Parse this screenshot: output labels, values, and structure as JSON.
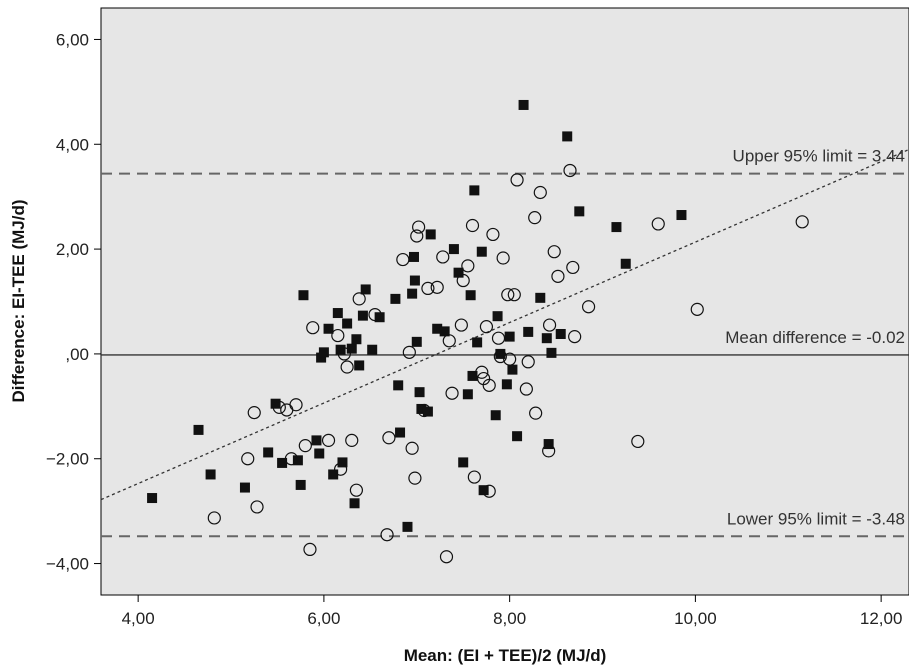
{
  "chart_data": {
    "type": "scatter",
    "title": "",
    "xlabel": "Mean: (EI + TEE)/2 (MJ/d)",
    "ylabel": "Difference: EI-TEE (MJ/d)",
    "xlim": [
      3.6,
      12.3
    ],
    "ylim": [
      -4.6,
      6.6
    ],
    "x_ticks": [
      4,
      6,
      8,
      10,
      12
    ],
    "x_tick_labels": [
      "4,00",
      "6,00",
      "8,00",
      "10,00",
      "12,00"
    ],
    "y_ticks": [
      -4,
      -2,
      0,
      2,
      4,
      6
    ],
    "y_tick_labels": [
      "−4,00",
      "−2,00",
      ",00",
      "2,00",
      "4,00",
      "6,00"
    ],
    "colors": {
      "background": "#e6e6e6",
      "marker": "#111111",
      "line": "#333333",
      "dashed": "#666666"
    },
    "reference_lines": [
      {
        "y": 3.44,
        "style": "dashed",
        "label": "Upper 95% limit = 3.44"
      },
      {
        "y": -0.02,
        "style": "solid",
        "label": "Mean difference = -0.02"
      },
      {
        "y": -3.48,
        "style": "dashed",
        "label": "Lower 95% limit = -3.48"
      }
    ],
    "regression_line": {
      "style": "dotted",
      "from": [
        3.6,
        -2.78
      ],
      "to": [
        12.3,
        3.9
      ]
    },
    "series": [
      {
        "marker": "square-filled",
        "points": [
          [
            4.15,
            -2.75
          ],
          [
            4.65,
            -1.45
          ],
          [
            4.78,
            -2.3
          ],
          [
            5.15,
            -2.55
          ],
          [
            5.4,
            -1.88
          ],
          [
            5.48,
            -0.95
          ],
          [
            5.55,
            -2.08
          ],
          [
            5.72,
            -2.03
          ],
          [
            5.75,
            -2.5
          ],
          [
            5.78,
            1.12
          ],
          [
            5.92,
            -1.65
          ],
          [
            5.95,
            -1.9
          ],
          [
            5.97,
            -0.07
          ],
          [
            6.0,
            0.03
          ],
          [
            6.05,
            0.48
          ],
          [
            6.1,
            -2.3
          ],
          [
            6.15,
            0.78
          ],
          [
            6.18,
            0.08
          ],
          [
            6.2,
            -2.07
          ],
          [
            6.25,
            0.58
          ],
          [
            6.3,
            0.1
          ],
          [
            6.33,
            -2.85
          ],
          [
            6.35,
            0.28
          ],
          [
            6.38,
            -0.22
          ],
          [
            6.42,
            0.73
          ],
          [
            6.45,
            1.23
          ],
          [
            6.52,
            0.08
          ],
          [
            6.6,
            0.7
          ],
          [
            6.77,
            1.05
          ],
          [
            6.8,
            -0.6
          ],
          [
            6.82,
            -1.5
          ],
          [
            6.9,
            -3.3
          ],
          [
            6.95,
            1.15
          ],
          [
            6.97,
            1.85
          ],
          [
            6.98,
            1.4
          ],
          [
            7.0,
            0.23
          ],
          [
            7.03,
            -0.73
          ],
          [
            7.05,
            -1.05
          ],
          [
            7.12,
            -1.1
          ],
          [
            7.15,
            2.28
          ],
          [
            7.22,
            0.48
          ],
          [
            7.3,
            0.43
          ],
          [
            7.4,
            2.0
          ],
          [
            7.45,
            1.55
          ],
          [
            7.5,
            -2.07
          ],
          [
            7.55,
            -0.77
          ],
          [
            7.58,
            1.12
          ],
          [
            7.6,
            -0.42
          ],
          [
            7.62,
            3.12
          ],
          [
            7.65,
            0.22
          ],
          [
            7.7,
            1.95
          ],
          [
            7.72,
            -2.6
          ],
          [
            7.85,
            -1.17
          ],
          [
            7.87,
            0.72
          ],
          [
            7.9,
            0.0
          ],
          [
            7.97,
            -0.58
          ],
          [
            8.0,
            0.33
          ],
          [
            8.03,
            -0.3
          ],
          [
            8.08,
            -1.57
          ],
          [
            8.15,
            4.75
          ],
          [
            8.2,
            0.42
          ],
          [
            8.33,
            1.07
          ],
          [
            8.4,
            0.3
          ],
          [
            8.42,
            -1.72
          ],
          [
            8.45,
            0.02
          ],
          [
            8.55,
            0.38
          ],
          [
            8.62,
            4.15
          ],
          [
            8.75,
            2.72
          ],
          [
            9.15,
            2.42
          ],
          [
            9.25,
            1.72
          ],
          [
            9.85,
            2.65
          ]
        ]
      },
      {
        "marker": "circle-open",
        "points": [
          [
            4.82,
            -3.13
          ],
          [
            5.18,
            -2.0
          ],
          [
            5.25,
            -1.12
          ],
          [
            5.28,
            -2.92
          ],
          [
            5.52,
            -1.02
          ],
          [
            5.6,
            -1.07
          ],
          [
            5.65,
            -2.0
          ],
          [
            5.7,
            -0.97
          ],
          [
            5.8,
            -1.75
          ],
          [
            5.85,
            -3.73
          ],
          [
            5.88,
            0.5
          ],
          [
            6.05,
            -1.65
          ],
          [
            6.15,
            0.35
          ],
          [
            6.18,
            -2.2
          ],
          [
            6.22,
            0.0
          ],
          [
            6.25,
            -0.25
          ],
          [
            6.3,
            -1.65
          ],
          [
            6.35,
            -2.6
          ],
          [
            6.38,
            1.05
          ],
          [
            6.55,
            0.75
          ],
          [
            6.68,
            -3.45
          ],
          [
            6.7,
            -1.6
          ],
          [
            6.85,
            1.8
          ],
          [
            6.92,
            0.03
          ],
          [
            6.95,
            -1.8
          ],
          [
            6.98,
            -2.37
          ],
          [
            7.0,
            2.25
          ],
          [
            7.02,
            2.42
          ],
          [
            7.08,
            -1.08
          ],
          [
            7.12,
            1.25
          ],
          [
            7.22,
            1.27
          ],
          [
            7.28,
            1.85
          ],
          [
            7.32,
            -3.87
          ],
          [
            7.35,
            0.25
          ],
          [
            7.38,
            -0.75
          ],
          [
            7.48,
            0.55
          ],
          [
            7.5,
            1.4
          ],
          [
            7.55,
            1.68
          ],
          [
            7.6,
            2.45
          ],
          [
            7.62,
            -2.35
          ],
          [
            7.7,
            -0.35
          ],
          [
            7.72,
            -0.47
          ],
          [
            7.75,
            0.52
          ],
          [
            7.78,
            -0.6
          ],
          [
            7.78,
            -2.62
          ],
          [
            7.82,
            2.28
          ],
          [
            7.88,
            0.3
          ],
          [
            7.9,
            -0.05
          ],
          [
            7.93,
            1.83
          ],
          [
            7.98,
            1.13
          ],
          [
            8.0,
            -0.1
          ],
          [
            8.05,
            1.13
          ],
          [
            8.08,
            3.32
          ],
          [
            8.18,
            -0.67
          ],
          [
            8.2,
            -0.15
          ],
          [
            8.27,
            2.6
          ],
          [
            8.28,
            -1.13
          ],
          [
            8.33,
            3.08
          ],
          [
            8.42,
            -1.85
          ],
          [
            8.43,
            0.55
          ],
          [
            8.48,
            1.95
          ],
          [
            8.52,
            1.48
          ],
          [
            8.65,
            3.5
          ],
          [
            8.68,
            1.65
          ],
          [
            8.7,
            0.33
          ],
          [
            8.85,
            0.9
          ],
          [
            9.38,
            -1.67
          ],
          [
            9.6,
            2.48
          ],
          [
            10.02,
            0.85
          ],
          [
            11.15,
            2.52
          ]
        ]
      }
    ]
  }
}
